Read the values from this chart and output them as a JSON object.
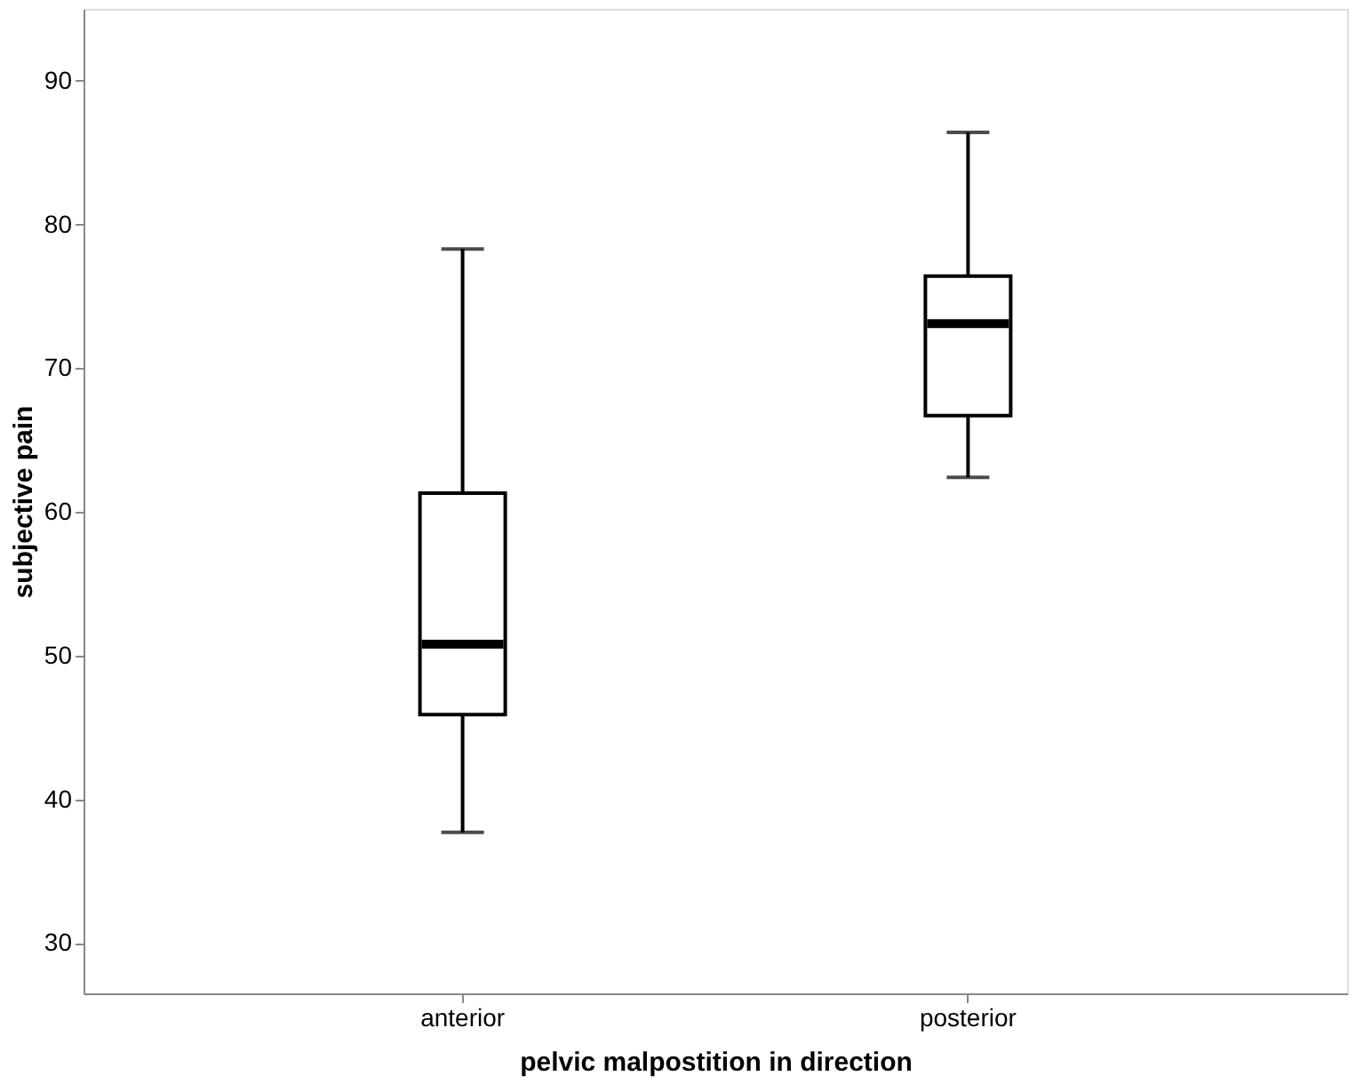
{
  "chart_data": {
    "type": "box",
    "xlabel": "pelvic malpostition in direction",
    "ylabel": "subjective pain",
    "categories": [
      "anterior",
      "posterior"
    ],
    "boxes": [
      {
        "low": 37.7,
        "q1": 45.9,
        "median": 50.8,
        "q3": 61.3,
        "high": 78.3
      },
      {
        "low": 62.4,
        "q1": 66.7,
        "median": 73.1,
        "q3": 76.4,
        "high": 86.4
      }
    ],
    "color": "#ffffff",
    "ylim": [
      26.5,
      95
    ],
    "yticks": [
      30,
      40,
      50,
      60,
      70,
      80,
      90
    ],
    "grid": false
  }
}
